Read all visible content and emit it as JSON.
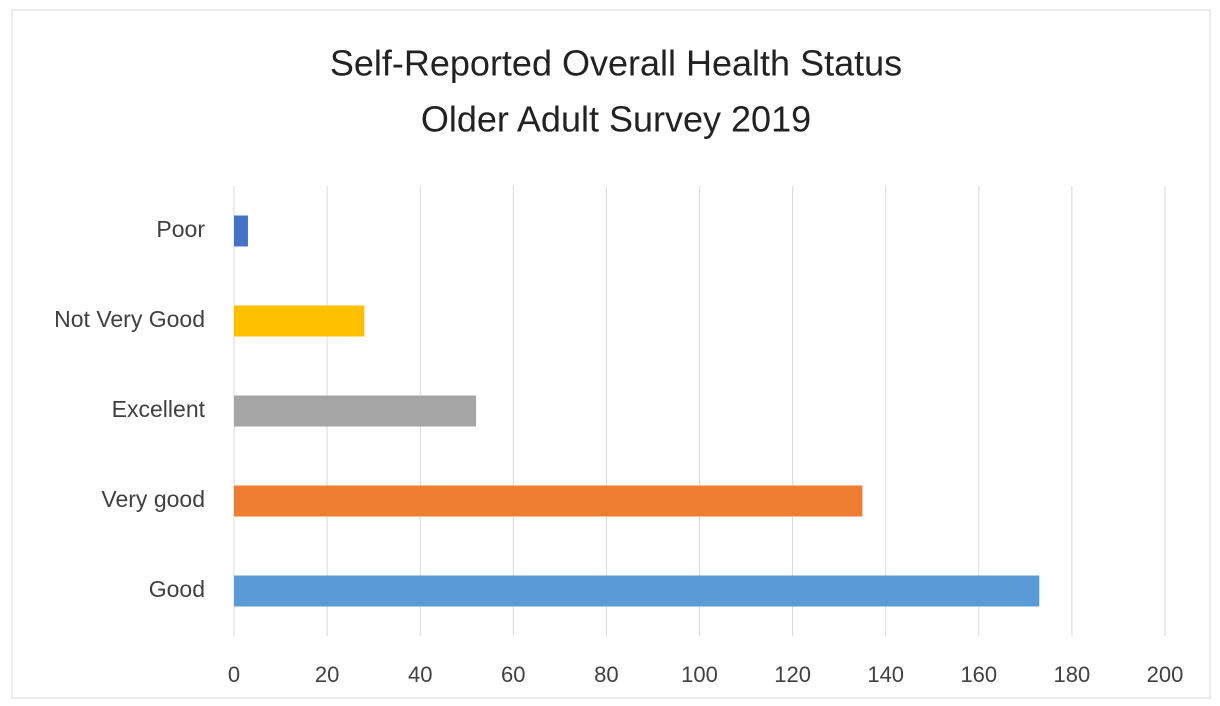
{
  "chart_data": {
    "type": "bar",
    "orientation": "horizontal",
    "title": [
      "Self-Reported Overall Health Status",
      "Older Adult Survey 2019"
    ],
    "categories": [
      "Poor",
      "Not Very Good",
      "Excellent",
      "Very good",
      "Good"
    ],
    "values": [
      3,
      28,
      52,
      135,
      173
    ],
    "colors": [
      "#4472c4",
      "#ffc000",
      "#a5a5a5",
      "#ed7d31",
      "#5b9bd5"
    ],
    "xlim": [
      0,
      200
    ],
    "xticks": [
      0,
      20,
      40,
      60,
      80,
      100,
      120,
      140,
      160,
      180,
      200
    ],
    "grid": true
  }
}
